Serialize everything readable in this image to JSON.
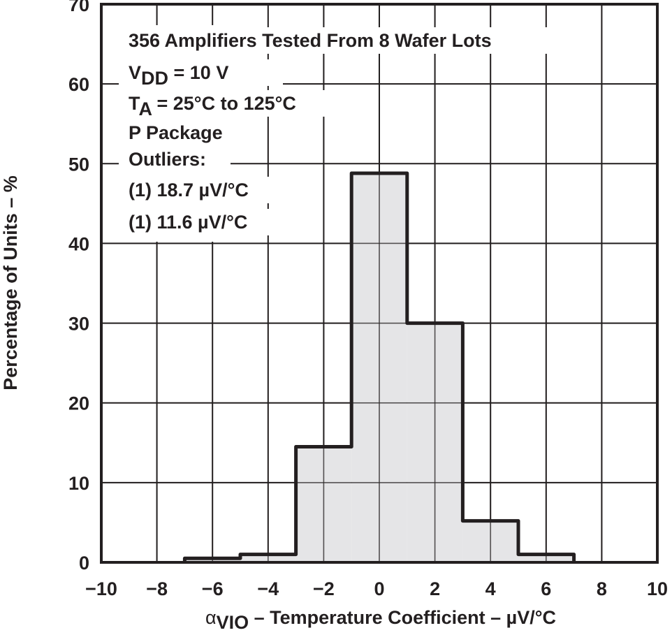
{
  "chart_data": {
    "type": "bar",
    "subtype": "histogram",
    "bin_edges": [
      -7,
      -5,
      -3,
      -1,
      1,
      3,
      5,
      7
    ],
    "values": [
      0.5,
      1.0,
      14.5,
      48.8,
      30.0,
      5.2,
      1.0
    ],
    "xlim": [
      -10,
      10
    ],
    "ylim": [
      0,
      70
    ],
    "xticks": [
      -10,
      -8,
      -6,
      -4,
      -2,
      0,
      2,
      4,
      6,
      8,
      10
    ],
    "yticks": [
      0,
      10,
      20,
      30,
      40,
      50,
      60,
      70
    ],
    "xtick_labels": [
      "−10",
      "−8",
      "−6",
      "−4",
      "−2",
      "0",
      "2",
      "4",
      "6",
      "8",
      "10"
    ],
    "ylabel": "Percentage of Units – %",
    "xlabel": {
      "symbol": "α",
      "subscript": "VIO",
      "text": " – Temperature Coefficient – µV/°C"
    },
    "grid": true,
    "fill_color": "#e0e1e3",
    "line_color": "#231f20",
    "annotations": [
      {
        "text": "356 Amplifiers Tested From 8 Wafer Lots"
      },
      {
        "text": "V",
        "sub": "DD",
        "rest": " = 10 V"
      },
      {
        "text": "T",
        "sub": "A",
        "rest": " = 25°C to 125°C"
      },
      {
        "text": "P Package"
      },
      {
        "text": "Outliers:"
      },
      {
        "text": "(1) 18.7 µV/°C"
      },
      {
        "text": "(1) 11.6 µV/°C"
      }
    ]
  }
}
